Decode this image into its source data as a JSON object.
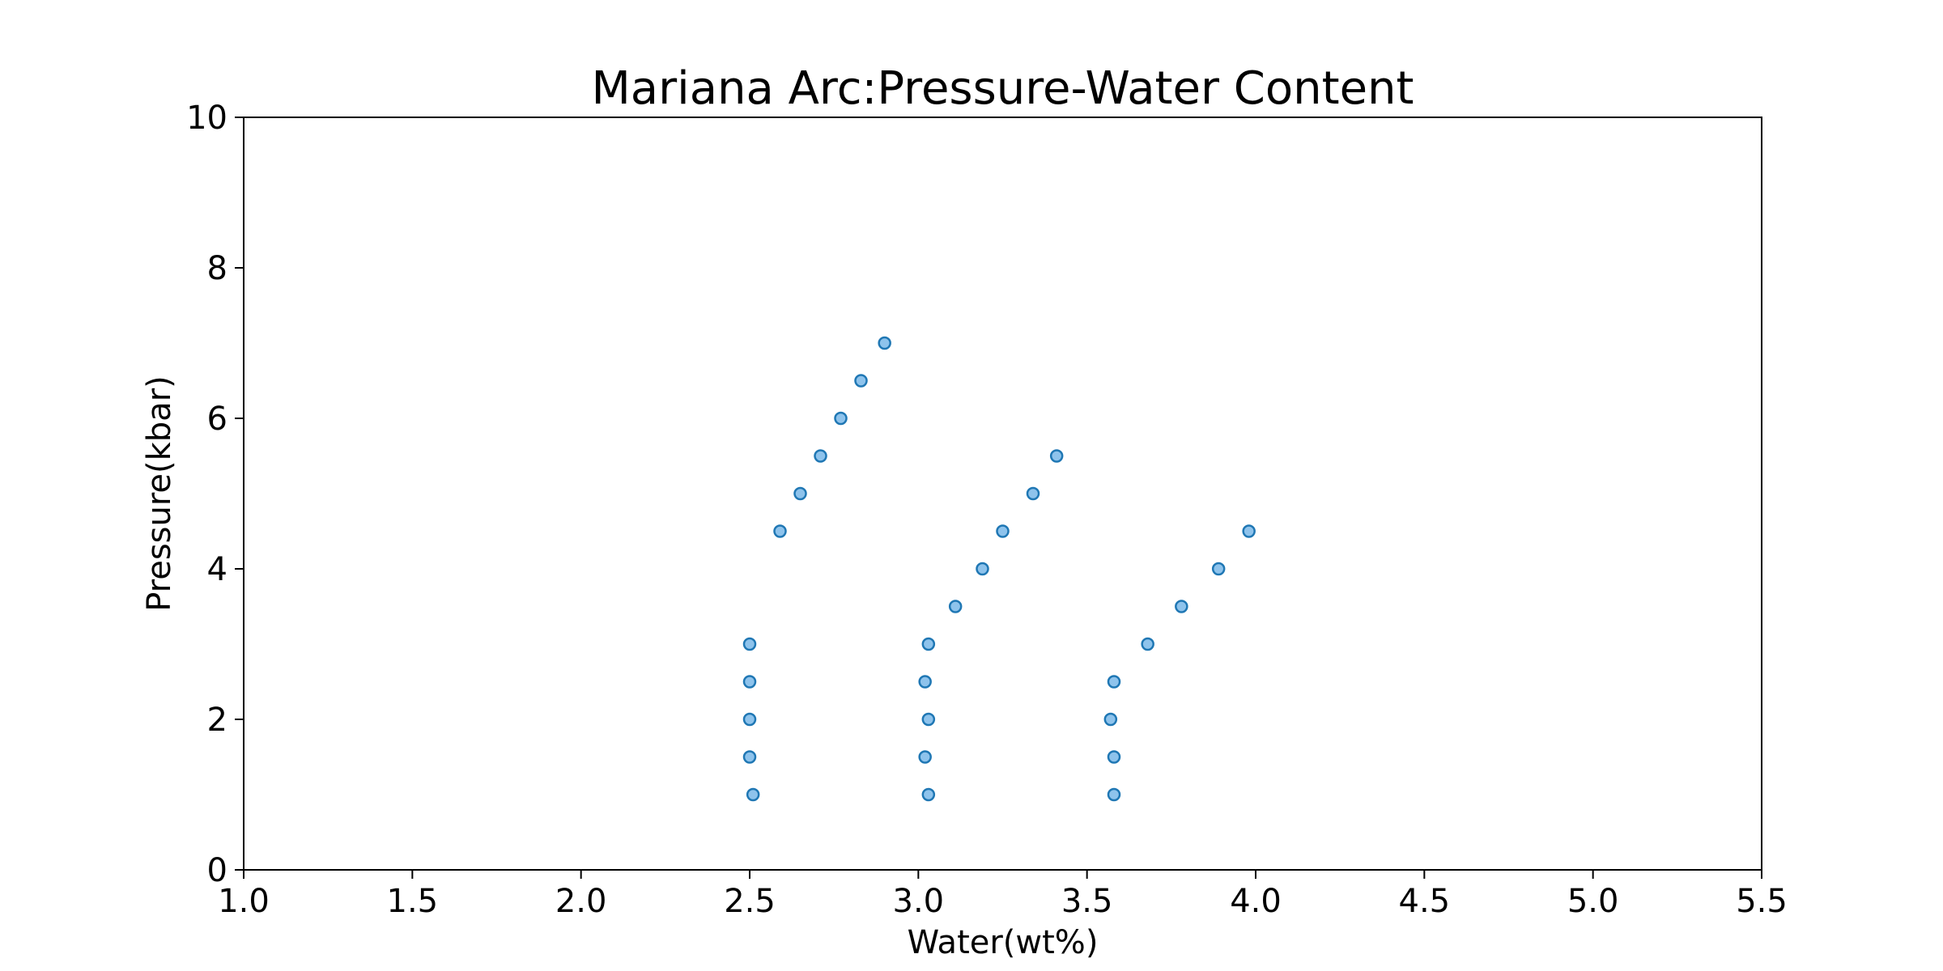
{
  "chart_data": {
    "type": "scatter",
    "title": "Mariana Arc:Pressure-Water Content",
    "xlabel": "Water(wt%)",
    "ylabel": "Pressure(kbar)",
    "xlim": [
      1.0,
      5.5
    ],
    "ylim": [
      0,
      10
    ],
    "xticks": [
      "1.0",
      "1.5",
      "2.0",
      "2.5",
      "3.0",
      "3.5",
      "4.0",
      "4.5",
      "5.0",
      "5.5"
    ],
    "yticks": [
      "0",
      "2",
      "4",
      "6",
      "8",
      "10"
    ],
    "grid": false,
    "legend": false,
    "marker_fill": "#8ec3ec",
    "marker_edge": "#1f77b4",
    "series": [
      {
        "points": [
          {
            "x": 2.51,
            "y": 1.0
          },
          {
            "x": 2.5,
            "y": 1.5
          },
          {
            "x": 2.5,
            "y": 2.0
          },
          {
            "x": 2.5,
            "y": 2.5
          },
          {
            "x": 2.5,
            "y": 3.0
          },
          {
            "x": 2.59,
            "y": 4.5
          },
          {
            "x": 2.65,
            "y": 5.0
          },
          {
            "x": 2.71,
            "y": 5.5
          },
          {
            "x": 2.77,
            "y": 6.0
          },
          {
            "x": 2.83,
            "y": 6.5
          },
          {
            "x": 2.9,
            "y": 7.0
          }
        ]
      },
      {
        "points": [
          {
            "x": 3.03,
            "y": 1.0
          },
          {
            "x": 3.02,
            "y": 1.5
          },
          {
            "x": 3.03,
            "y": 2.0
          },
          {
            "x": 3.02,
            "y": 2.5
          },
          {
            "x": 3.03,
            "y": 3.0
          },
          {
            "x": 3.11,
            "y": 3.5
          },
          {
            "x": 3.19,
            "y": 4.0
          },
          {
            "x": 3.25,
            "y": 4.5
          },
          {
            "x": 3.34,
            "y": 5.0
          },
          {
            "x": 3.41,
            "y": 5.5
          }
        ]
      },
      {
        "points": [
          {
            "x": 3.58,
            "y": 1.0
          },
          {
            "x": 3.58,
            "y": 1.5
          },
          {
            "x": 3.57,
            "y": 2.0
          },
          {
            "x": 3.58,
            "y": 2.5
          },
          {
            "x": 3.68,
            "y": 3.0
          },
          {
            "x": 3.78,
            "y": 3.5
          },
          {
            "x": 3.89,
            "y": 4.0
          },
          {
            "x": 3.98,
            "y": 4.5
          }
        ]
      }
    ]
  }
}
